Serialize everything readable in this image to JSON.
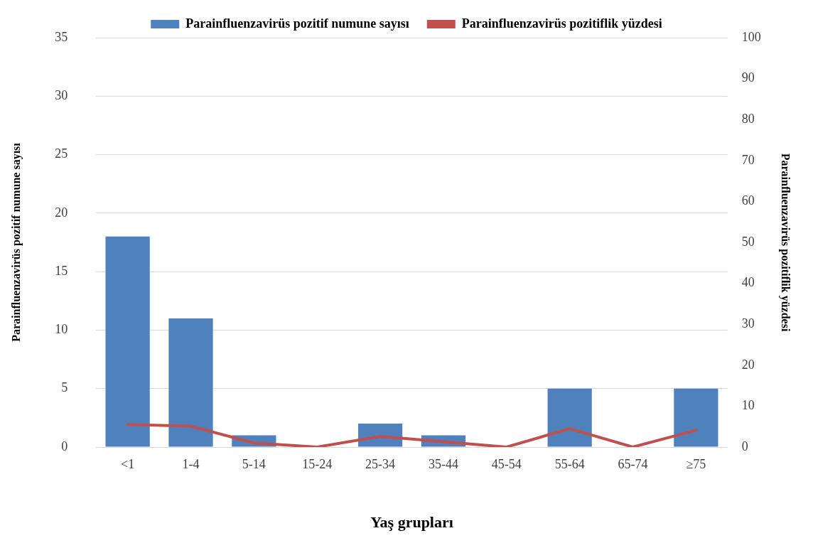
{
  "chart_data": {
    "type": "bar",
    "xlabel": "Yaş grupları",
    "ylabel": "Parainfluenzavirüs pozitif numune sayısı",
    "y2label": "Parainfluenzavirüs pozitiflik yüzdesi",
    "categories": [
      "<1",
      "1-4",
      "5-14",
      "15-24",
      "25-34",
      "35-44",
      "45-54",
      "55-64",
      "65-74",
      "≥75"
    ],
    "series": [
      {
        "name": "Parainfluenzavirüs pozitif numune sayısı",
        "color": "#4f81bd",
        "values": [
          18,
          11,
          1,
          0,
          2,
          1,
          0,
          5,
          0,
          5
        ]
      },
      {
        "name": "Parainfluenzavirüs pozitiflik yüzdesi",
        "type": "line",
        "axis": "y2",
        "color": "#c0504d",
        "values": [
          5.5,
          5.1,
          1.0,
          0,
          2.6,
          1.3,
          0,
          4.5,
          0,
          4.1
        ]
      }
    ],
    "ylim": [
      0,
      35
    ],
    "yticks": [
      0,
      5,
      10,
      15,
      20,
      25,
      30,
      35
    ],
    "y2lim": [
      0,
      100
    ],
    "y2ticks": [
      0,
      10,
      20,
      30,
      40,
      50,
      60,
      70,
      80,
      90,
      100
    ],
    "grid": "y",
    "legend": "top",
    "marker": "none"
  }
}
